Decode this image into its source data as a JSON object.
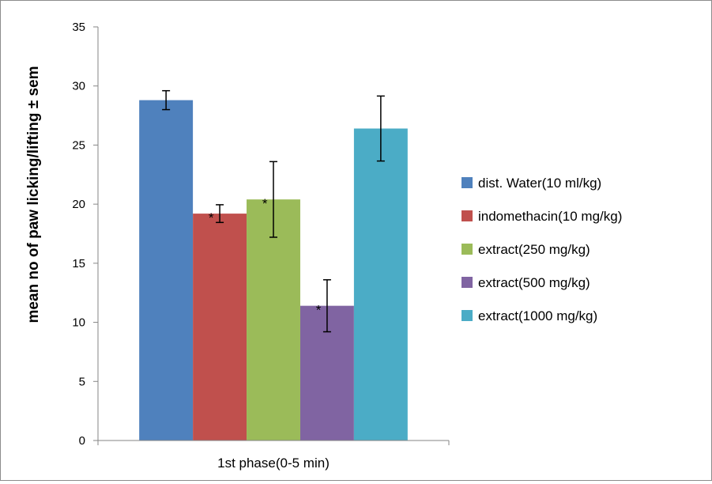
{
  "chart_data": {
    "type": "bar",
    "title": "",
    "xlabel": "",
    "ylabel": "mean no of paw licking/lifting ± sem",
    "ylim": [
      0,
      35
    ],
    "yticks": [
      0,
      5,
      10,
      15,
      20,
      25,
      30,
      35
    ],
    "grid": false,
    "legend_position": "right",
    "categories": [
      "1st phase(0-5 min)"
    ],
    "series": [
      {
        "name": "dist. Water(10 ml/kg)",
        "color": "#4F81BD",
        "values": [
          28.8
        ],
        "error": [
          0.8
        ],
        "marker": ""
      },
      {
        "name": "indomethacin(10 mg/kg)",
        "color": "#C0504D",
        "values": [
          19.2
        ],
        "error": [
          0.75
        ],
        "marker": "*"
      },
      {
        "name": "extract(250 mg/kg)",
        "color": "#9BBB59",
        "values": [
          20.4
        ],
        "error": [
          3.2
        ],
        "marker": "*"
      },
      {
        "name": "extract(500 mg/kg)",
        "color": "#8064A2",
        "values": [
          11.4
        ],
        "error": [
          2.2
        ],
        "marker": "*"
      },
      {
        "name": "extract(1000 mg/kg)",
        "color": "#4BACC6",
        "values": [
          26.4
        ],
        "error": [
          2.75
        ],
        "marker": ""
      }
    ]
  }
}
